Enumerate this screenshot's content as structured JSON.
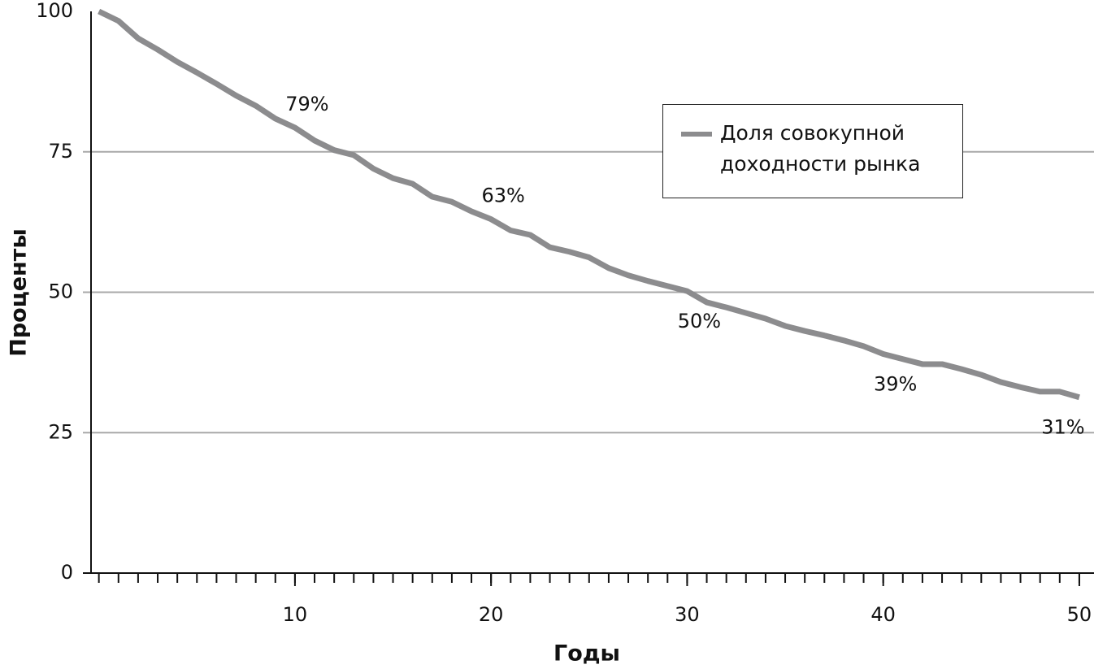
{
  "chart_data": {
    "type": "line",
    "x_label": "Годы",
    "y_label": "Проценты",
    "x": [
      0,
      1,
      2,
      3,
      4,
      5,
      6,
      7,
      8,
      9,
      10,
      11,
      12,
      13,
      14,
      15,
      16,
      17,
      18,
      19,
      20,
      21,
      22,
      23,
      24,
      25,
      26,
      27,
      28,
      29,
      30,
      31,
      32,
      33,
      34,
      35,
      36,
      37,
      38,
      39,
      40,
      41,
      42,
      43,
      44,
      45,
      46,
      47,
      48,
      49,
      50
    ],
    "series": [
      {
        "name": "Доля совокупной доходности рынка",
        "color": "#8c8c8e",
        "values": [
          100,
          98.3,
          95.2,
          93.2,
          91,
          89.1,
          87.1,
          85,
          83.2,
          80.9,
          79.3,
          77,
          75.3,
          74.4,
          72,
          70.3,
          69.3,
          67,
          66.1,
          64.4,
          63,
          61,
          60.2,
          58,
          57.2,
          56.2,
          54.3,
          53,
          52,
          51.1,
          50.2,
          48.2,
          47.3,
          46.3,
          45.3,
          44,
          43.1,
          42.3,
          41.4,
          40.4,
          39,
          38.1,
          37.2,
          37.2,
          36.3,
          35.3,
          34,
          33.1,
          32.3,
          32.3,
          31.3
        ],
        "value_labels": [
          null,
          null,
          null,
          null,
          null,
          null,
          null,
          null,
          null,
          null,
          "79%",
          null,
          null,
          null,
          null,
          null,
          null,
          null,
          null,
          null,
          "63%",
          null,
          null,
          null,
          null,
          null,
          null,
          null,
          null,
          null,
          "50%",
          null,
          null,
          null,
          null,
          null,
          null,
          null,
          null,
          null,
          "39%",
          null,
          null,
          null,
          null,
          null,
          null,
          null,
          null,
          null,
          "31%"
        ]
      }
    ],
    "xlim": [
      -0.4,
      50.5
    ],
    "xticks": [
      10,
      20,
      30,
      40,
      50
    ],
    "minor_xticks": [
      0,
      1,
      2,
      3,
      4,
      5,
      6,
      7,
      8,
      9,
      10,
      11,
      12,
      13,
      14,
      15,
      16,
      17,
      18,
      19,
      20,
      21,
      22,
      23,
      24,
      25,
      26,
      27,
      28,
      29,
      30,
      31,
      32,
      33,
      34,
      35,
      36,
      37,
      38,
      39,
      40,
      41,
      42,
      43,
      44,
      45,
      46,
      47,
      48,
      49,
      50
    ],
    "ylim": [
      0,
      100
    ],
    "yticks": [
      0,
      25,
      50,
      75,
      100
    ],
    "grid": true,
    "legend": "upper right"
  }
}
